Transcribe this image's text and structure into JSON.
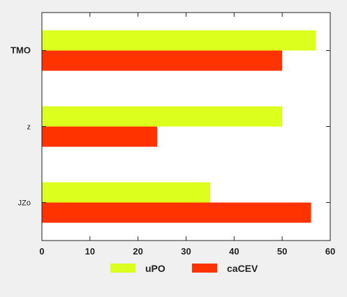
{
  "chart_data": {
    "type": "bar",
    "orientation": "horizontal",
    "categories": [
      "JZo",
      "z",
      "TMO"
    ],
    "series": [
      {
        "name": "uPO",
        "values": [
          35,
          50,
          57
        ],
        "color": "#dcff1e"
      },
      {
        "name": "caCEV",
        "values": [
          56,
          24,
          50
        ],
        "color": "#ff3300"
      }
    ],
    "xlim": [
      0,
      60
    ],
    "xticks": [
      0,
      10,
      20,
      30,
      40,
      50,
      60
    ],
    "grid": false,
    "legend_position": "bottom"
  }
}
